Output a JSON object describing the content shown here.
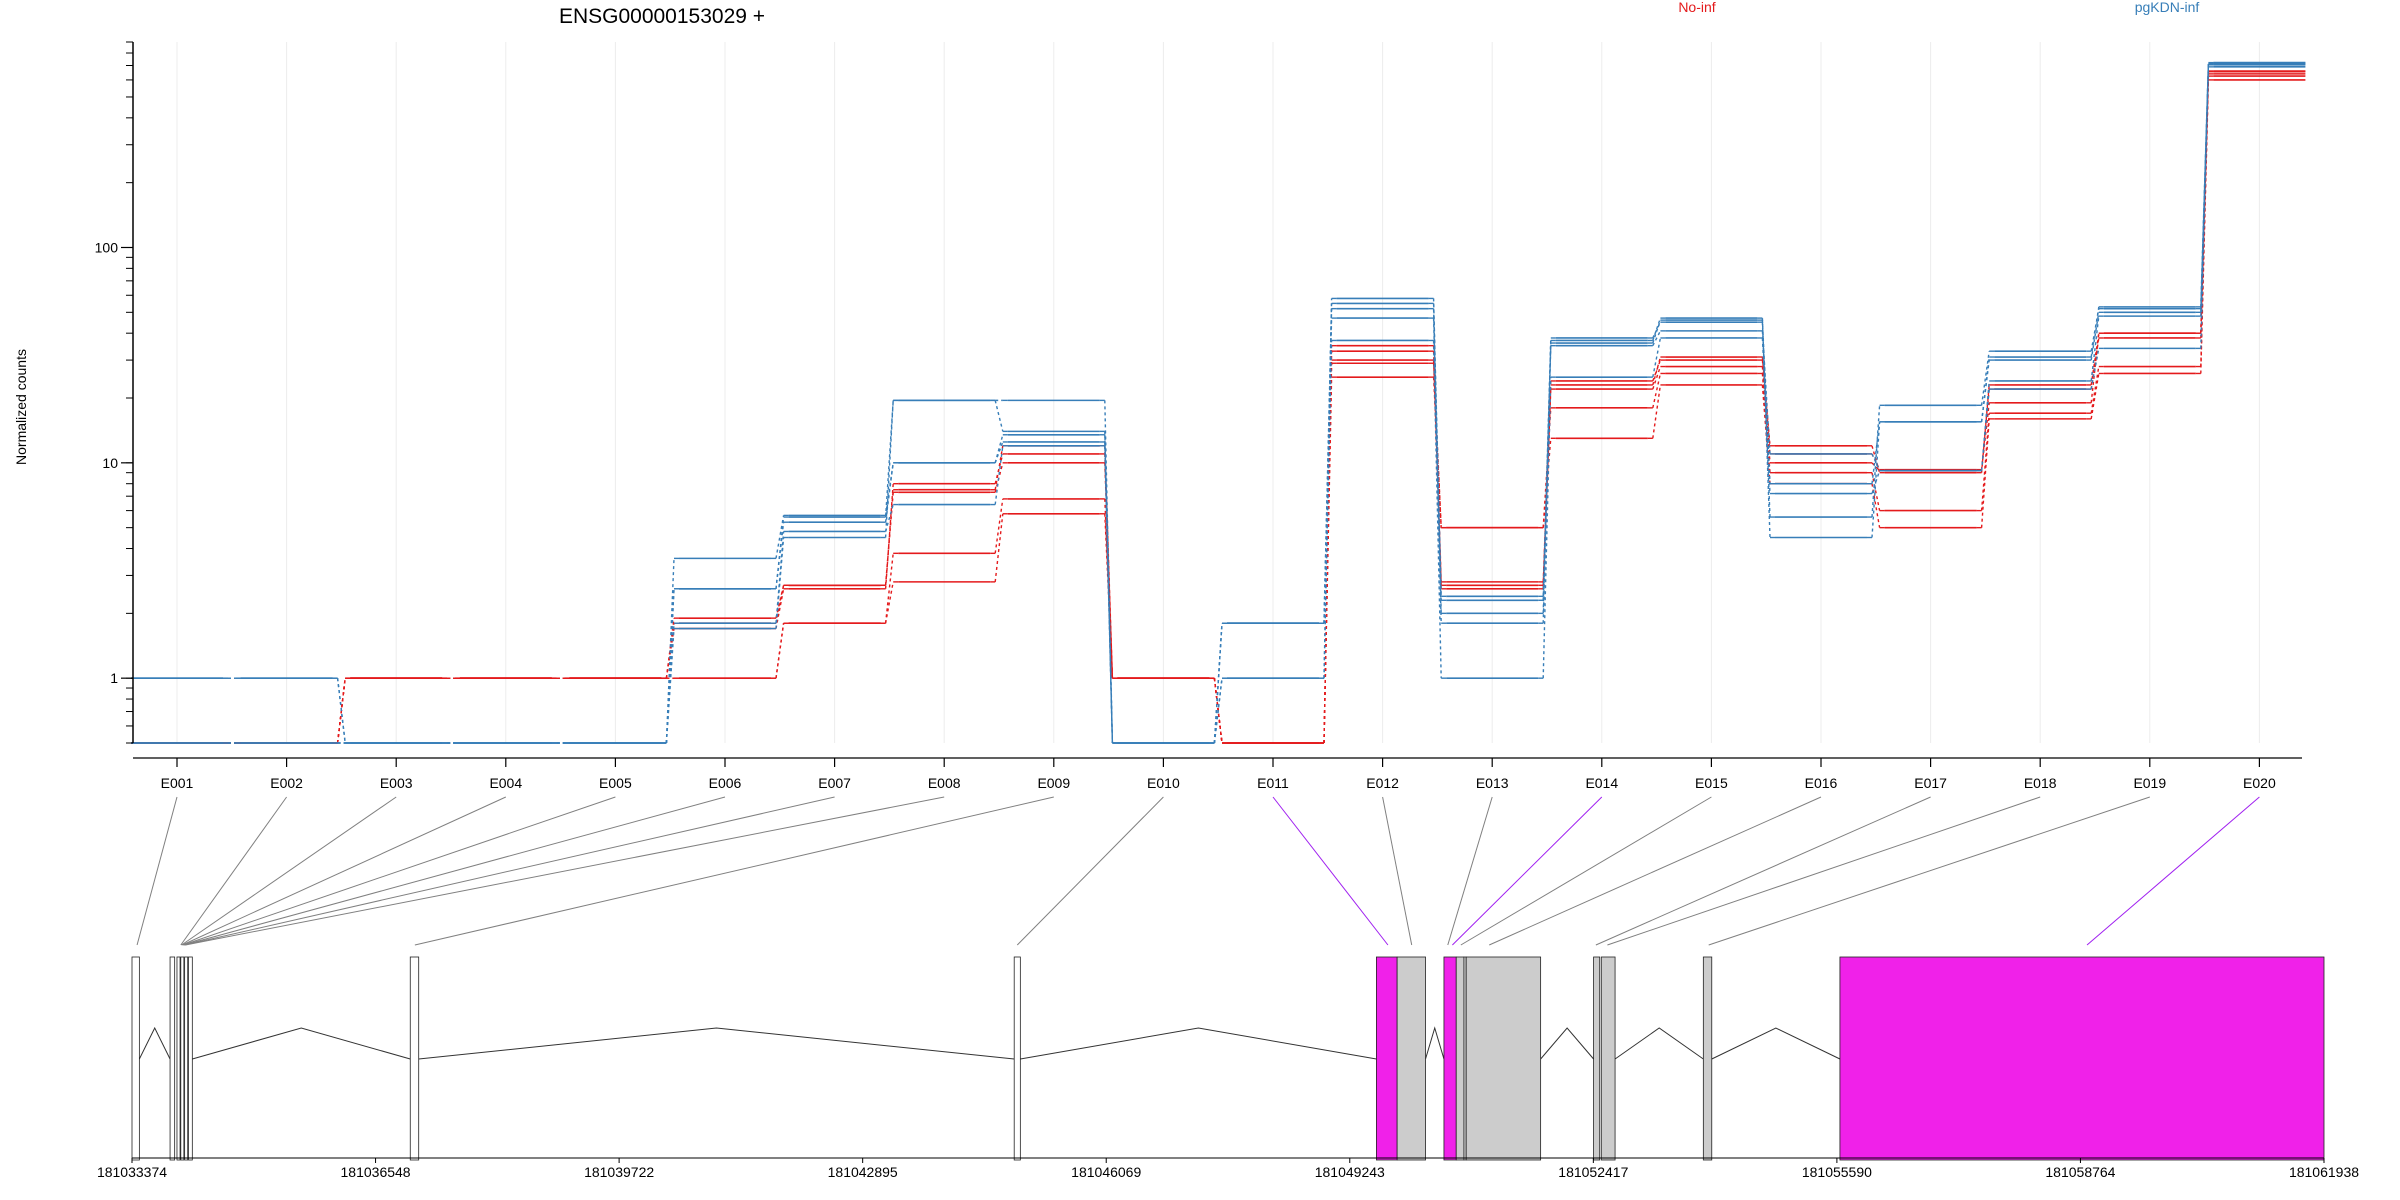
{
  "chart_data": {
    "type": "line",
    "title": "ENSG00000153029 +",
    "ylabel": "Normalized counts",
    "y_scale": "log",
    "ylim": [
      0.5,
      900
    ],
    "y_ticks": [
      1,
      10,
      100
    ],
    "y_tick_labels": [
      "1",
      "10",
      "100"
    ],
    "grid": "vertical",
    "legend_placement": "top",
    "legend": [
      {
        "name": "No-inf",
        "color": "#e41a1c"
      },
      {
        "name": "pgKDN-inf",
        "color": "#377eb8"
      }
    ],
    "categories": [
      "E001",
      "E002",
      "E003",
      "E004",
      "E005",
      "E006",
      "E007",
      "E008",
      "E009",
      "E010",
      "E011",
      "E012",
      "E013",
      "E014",
      "E015",
      "E016",
      "E017",
      "E018",
      "E019",
      "E020"
    ],
    "series": [
      {
        "group": "No-inf",
        "color": "#e41a1c",
        "values": [
          0.5,
          0.5,
          1,
          1,
          1,
          1,
          1.8,
          2.8,
          5.8,
          1,
          0.5,
          25,
          5,
          13,
          23,
          8,
          5,
          16,
          26,
          600
        ]
      },
      {
        "group": "No-inf",
        "color": "#e41a1c",
        "values": [
          0.5,
          0.5,
          1,
          1,
          1,
          1,
          1.8,
          3.8,
          6.8,
          1,
          0.5,
          29,
          5,
          18,
          26,
          9,
          6,
          17,
          28,
          625
        ]
      },
      {
        "group": "No-inf",
        "color": "#e41a1c",
        "values": [
          0.5,
          0.5,
          1,
          1,
          1,
          1.9,
          2.7,
          7.3,
          10,
          1,
          0.5,
          30,
          2.7,
          22,
          28,
          10,
          9.2,
          19,
          40,
          640
        ]
      },
      {
        "group": "No-inf",
        "color": "#e41a1c",
        "values": [
          0.5,
          0.5,
          1,
          1,
          1,
          1.7,
          2.6,
          8,
          11,
          1,
          0.5,
          33,
          2.6,
          23,
          31,
          12,
          9,
          23,
          40,
          655
        ]
      },
      {
        "group": "No-inf",
        "color": "#e41a1c",
        "values": [
          0.5,
          0.5,
          1,
          1,
          1,
          1.8,
          2.7,
          7.5,
          12,
          1,
          0.5,
          35,
          2.8,
          24,
          30,
          11,
          9.3,
          22,
          38,
          660
        ]
      },
      {
        "group": "pgKDN-inf",
        "color": "#377eb8",
        "values": [
          1,
          1,
          0.5,
          0.5,
          0.5,
          1.8,
          4.8,
          6.4,
          12,
          0.5,
          1,
          37,
          1,
          25,
          38,
          7.2,
          9.2,
          22,
          34,
          690
        ]
      },
      {
        "group": "pgKDN-inf",
        "color": "#377eb8",
        "values": [
          0.5,
          0.5,
          0.5,
          0.5,
          0.5,
          2.6,
          5.3,
          10,
          12.5,
          0.5,
          1.8,
          47,
          1.8,
          35,
          41,
          11,
          9.2,
          24,
          48,
          705
        ]
      },
      {
        "group": "pgKDN-inf",
        "color": "#377eb8",
        "values": [
          0.5,
          0.5,
          0.5,
          0.5,
          0.5,
          3.6,
          5.7,
          10,
          13.5,
          0.5,
          1.8,
          52,
          2.4,
          36,
          46,
          8,
          15.5,
          30,
          50,
          712
        ]
      },
      {
        "group": "pgKDN-inf",
        "color": "#377eb8",
        "values": [
          0.5,
          0.5,
          0.5,
          0.5,
          0.5,
          2.6,
          5.6,
          19.5,
          14,
          0.5,
          1.8,
          55,
          2,
          38,
          45,
          5.6,
          18.5,
          33,
          52,
          718
        ]
      },
      {
        "group": "pgKDN-inf",
        "color": "#377eb8",
        "values": [
          1,
          1,
          0.5,
          0.5,
          0.5,
          1.7,
          4.5,
          19.5,
          19.5,
          0.5,
          1,
          58,
          2.3,
          37,
          47,
          4.5,
          15.5,
          31,
          53,
          722
        ]
      }
    ],
    "gene_model": {
      "coord_ticks": [
        "181033374",
        "181036548",
        "181039722",
        "181042895",
        "181046069",
        "181049243",
        "181052417",
        "181055590",
        "181058764",
        "181061938"
      ],
      "coord_range": [
        181033374,
        181061938
      ],
      "exons": [
        {
          "start": 181033374,
          "end": 181033470,
          "fill": "#ffffff"
        },
        {
          "start": 181033870,
          "end": 181033930,
          "fill": "#ffffff"
        },
        {
          "start": 181033960,
          "end": 181034000,
          "fill": "#ffffff"
        },
        {
          "start": 181034010,
          "end": 181034050,
          "fill": "#ffffff"
        },
        {
          "start": 181034060,
          "end": 181034100,
          "fill": "#ffffff"
        },
        {
          "start": 181034110,
          "end": 181034160,
          "fill": "#ffffff"
        },
        {
          "start": 181037000,
          "end": 181037110,
          "fill": "#ffffff"
        },
        {
          "start": 181044870,
          "end": 181044950,
          "fill": "#ffffff"
        },
        {
          "start": 181049590,
          "end": 181049860,
          "fill": "#f021e9"
        },
        {
          "start": 181049860,
          "end": 181050230,
          "fill": "#cccccc"
        },
        {
          "start": 181050470,
          "end": 181050630,
          "fill": "#f021e9"
        },
        {
          "start": 181050630,
          "end": 181050730,
          "fill": "#cccccc"
        },
        {
          "start": 181050730,
          "end": 181050760,
          "fill": "#cccccc"
        },
        {
          "start": 181050760,
          "end": 181051730,
          "fill": "#cccccc"
        },
        {
          "start": 181052420,
          "end": 181052500,
          "fill": "#cccccc"
        },
        {
          "start": 181052520,
          "end": 181052700,
          "fill": "#cccccc"
        },
        {
          "start": 181053850,
          "end": 181053960,
          "fill": "#cccccc"
        },
        {
          "start": 181055630,
          "end": 181061938,
          "fill": "#f021e9"
        }
      ],
      "connectors": [
        {
          "bin": "E001",
          "coord": 181033440,
          "color": "#808080"
        },
        {
          "bin": "E002",
          "coord": 181034010,
          "color": "#808080"
        },
        {
          "bin": "E003",
          "coord": 181034020,
          "color": "#808080"
        },
        {
          "bin": "E004",
          "coord": 181034030,
          "color": "#808080"
        },
        {
          "bin": "E005",
          "coord": 181034040,
          "color": "#808080"
        },
        {
          "bin": "E006",
          "coord": 181034050,
          "color": "#808080"
        },
        {
          "bin": "E007",
          "coord": 181034060,
          "color": "#808080"
        },
        {
          "bin": "E008",
          "coord": 181034070,
          "color": "#808080"
        },
        {
          "bin": "E009",
          "coord": 181037060,
          "color": "#808080"
        },
        {
          "bin": "E010",
          "coord": 181044910,
          "color": "#808080"
        },
        {
          "bin": "E011",
          "coord": 181049740,
          "color": "#a020f0"
        },
        {
          "bin": "E012",
          "coord": 181050050,
          "color": "#808080"
        },
        {
          "bin": "E013",
          "coord": 181050520,
          "color": "#808080"
        },
        {
          "bin": "E014",
          "coord": 181050580,
          "color": "#a020f0"
        },
        {
          "bin": "E015",
          "coord": 181050690,
          "color": "#808080"
        },
        {
          "bin": "E016",
          "coord": 181051060,
          "color": "#808080"
        },
        {
          "bin": "E017",
          "coord": 181052450,
          "color": "#808080"
        },
        {
          "bin": "E018",
          "coord": 181052600,
          "color": "#808080"
        },
        {
          "bin": "E019",
          "coord": 181053920,
          "color": "#808080"
        },
        {
          "bin": "E020",
          "coord": 181058850,
          "color": "#a020f0"
        }
      ]
    }
  }
}
